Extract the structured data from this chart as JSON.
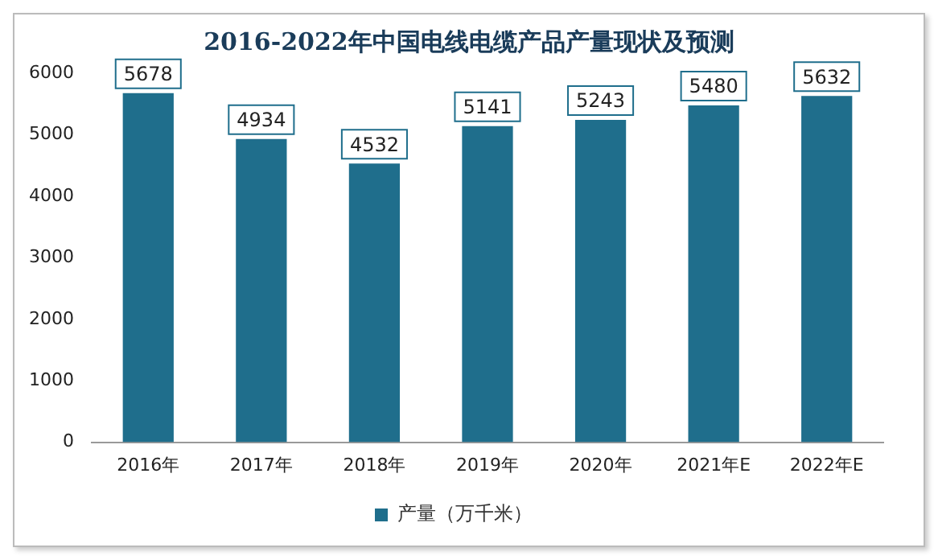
{
  "chart_data": {
    "type": "bar",
    "title": "2016-2022年中国电线电缆产品产量现状及预测",
    "categories": [
      "2016年",
      "2017年",
      "2018年",
      "2019年",
      "2020年",
      "2021年E",
      "2022年E"
    ],
    "series": [
      {
        "name": "产量（万千米）",
        "color": "#1f6e8c",
        "values": [
          5678,
          4934,
          4532,
          5141,
          5243,
          5480,
          5632
        ]
      }
    ],
    "ylim": [
      0,
      6000
    ],
    "yticks": [
      0,
      1000,
      2000,
      3000,
      4000,
      5000,
      6000
    ],
    "grid": false,
    "legend": "bottom",
    "data_labels": true
  }
}
